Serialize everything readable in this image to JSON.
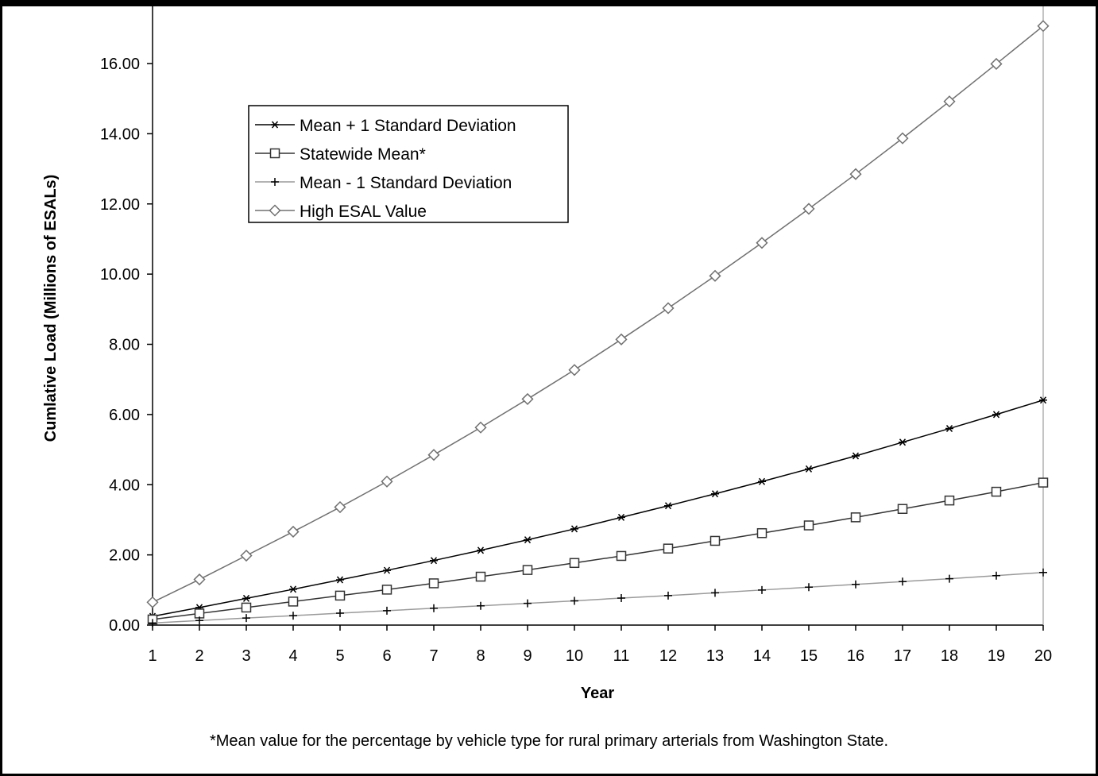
{
  "chart_data": {
    "type": "line",
    "title": "",
    "xlabel": "Year",
    "ylabel": "Cumlative Load (Millions of ESALs)",
    "x": [
      1,
      2,
      3,
      4,
      5,
      6,
      7,
      8,
      9,
      10,
      11,
      12,
      13,
      14,
      15,
      16,
      17,
      18,
      19,
      20
    ],
    "xlim": [
      1,
      20
    ],
    "ylim": [
      0,
      16
    ],
    "yticks": [
      "0.00",
      "2.00",
      "4.00",
      "6.00",
      "8.00",
      "10.00",
      "12.00",
      "14.00",
      "16.00"
    ],
    "legend_position": "upper-left",
    "grid": false,
    "series": [
      {
        "name": "Mean + 1 Standard Deviation",
        "marker": "asterisk",
        "color": "#000000",
        "values": [
          0.25,
          0.5,
          0.76,
          1.02,
          1.29,
          1.56,
          1.84,
          2.13,
          2.43,
          2.74,
          3.07,
          3.4,
          3.74,
          4.09,
          4.45,
          4.82,
          5.21,
          5.6,
          6.0,
          6.41
        ]
      },
      {
        "name": "Statewide Mean*",
        "marker": "square",
        "color": "#333333",
        "values": [
          0.16,
          0.33,
          0.5,
          0.67,
          0.84,
          1.01,
          1.19,
          1.38,
          1.57,
          1.77,
          1.97,
          2.18,
          2.4,
          2.62,
          2.84,
          3.07,
          3.31,
          3.55,
          3.8,
          4.06
        ]
      },
      {
        "name": "Mean - 1 Standard Deviation",
        "marker": "plus",
        "color": "#9a9a9a",
        "values": [
          0.06,
          0.13,
          0.2,
          0.27,
          0.34,
          0.41,
          0.48,
          0.55,
          0.62,
          0.69,
          0.77,
          0.84,
          0.92,
          1.0,
          1.08,
          1.16,
          1.24,
          1.32,
          1.41,
          1.5
        ]
      },
      {
        "name": "High ESAL Value",
        "marker": "diamond",
        "color": "#707070",
        "values": [
          0.65,
          1.3,
          1.98,
          2.66,
          3.36,
          4.09,
          4.85,
          5.63,
          6.44,
          7.27,
          8.14,
          9.03,
          9.95,
          10.89,
          11.86,
          12.85,
          13.87,
          14.92,
          15.99,
          17.07
        ]
      }
    ]
  },
  "footnote": "*Mean value for the percentage by vehicle type for rural primary arterials from Washington State."
}
